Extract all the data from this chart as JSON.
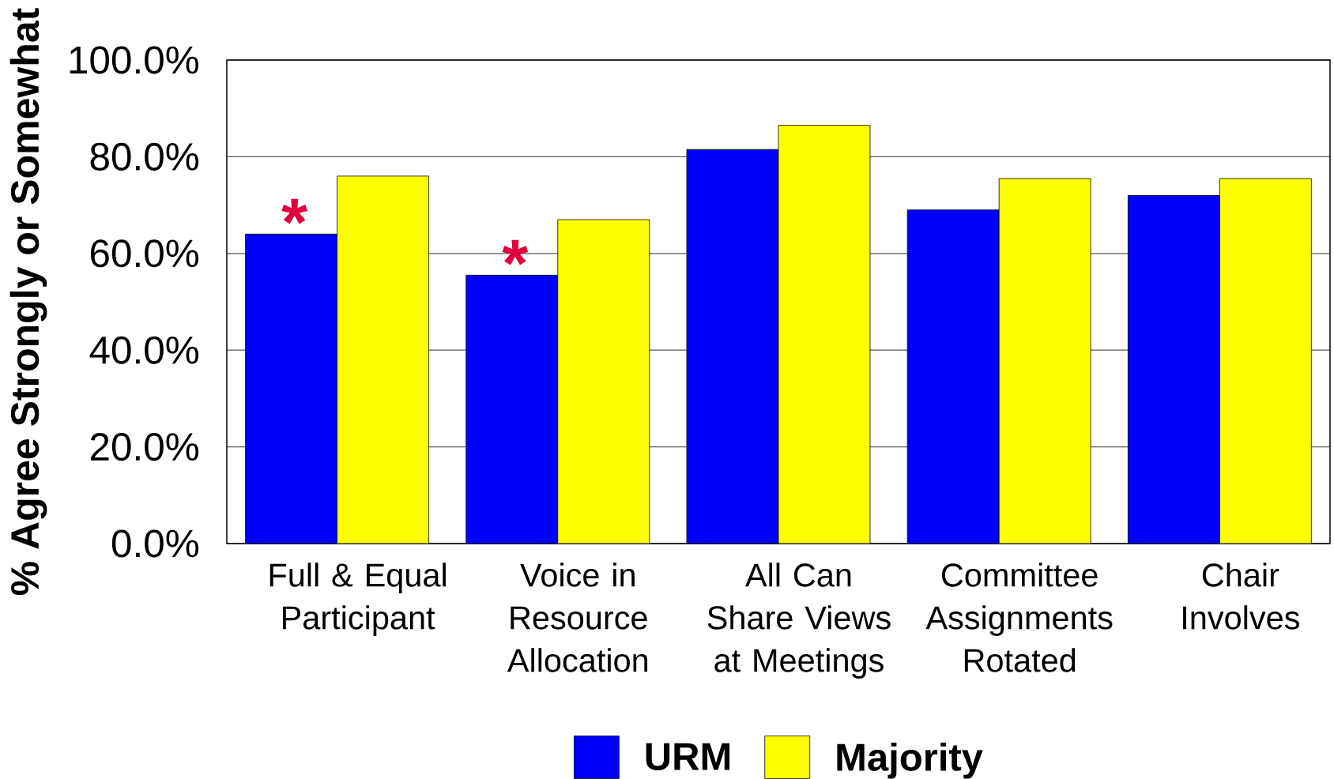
{
  "chart_data": {
    "type": "bar",
    "ylabel": "% Agree Strongly or Somewhat",
    "categories": [
      "Full & Equal Participant",
      "Voice in Resource Allocation",
      "All Can Share Views at Meetings",
      "Committee Assignments Rotated",
      "Chair Involves"
    ],
    "series": [
      {
        "name": "URM",
        "color": "#0000ff",
        "values": [
          64,
          55.5,
          81.5,
          69,
          72
        ]
      },
      {
        "name": "Majority",
        "color": "#ffff00",
        "values": [
          76,
          67,
          86.5,
          75.5,
          75.5
        ]
      }
    ],
    "ylim": [
      0,
      100
    ],
    "yticks": [
      {
        "value": 0,
        "label": "0.0%"
      },
      {
        "value": 20,
        "label": "20.0%"
      },
      {
        "value": 40,
        "label": "40.0%"
      },
      {
        "value": 60,
        "label": "60.0%"
      },
      {
        "value": 80,
        "label": "80.0%"
      },
      {
        "value": 100,
        "label": "100.0%"
      }
    ],
    "grid": "y",
    "legend": "bottom",
    "annotations": [
      "*",
      "*"
    ]
  }
}
